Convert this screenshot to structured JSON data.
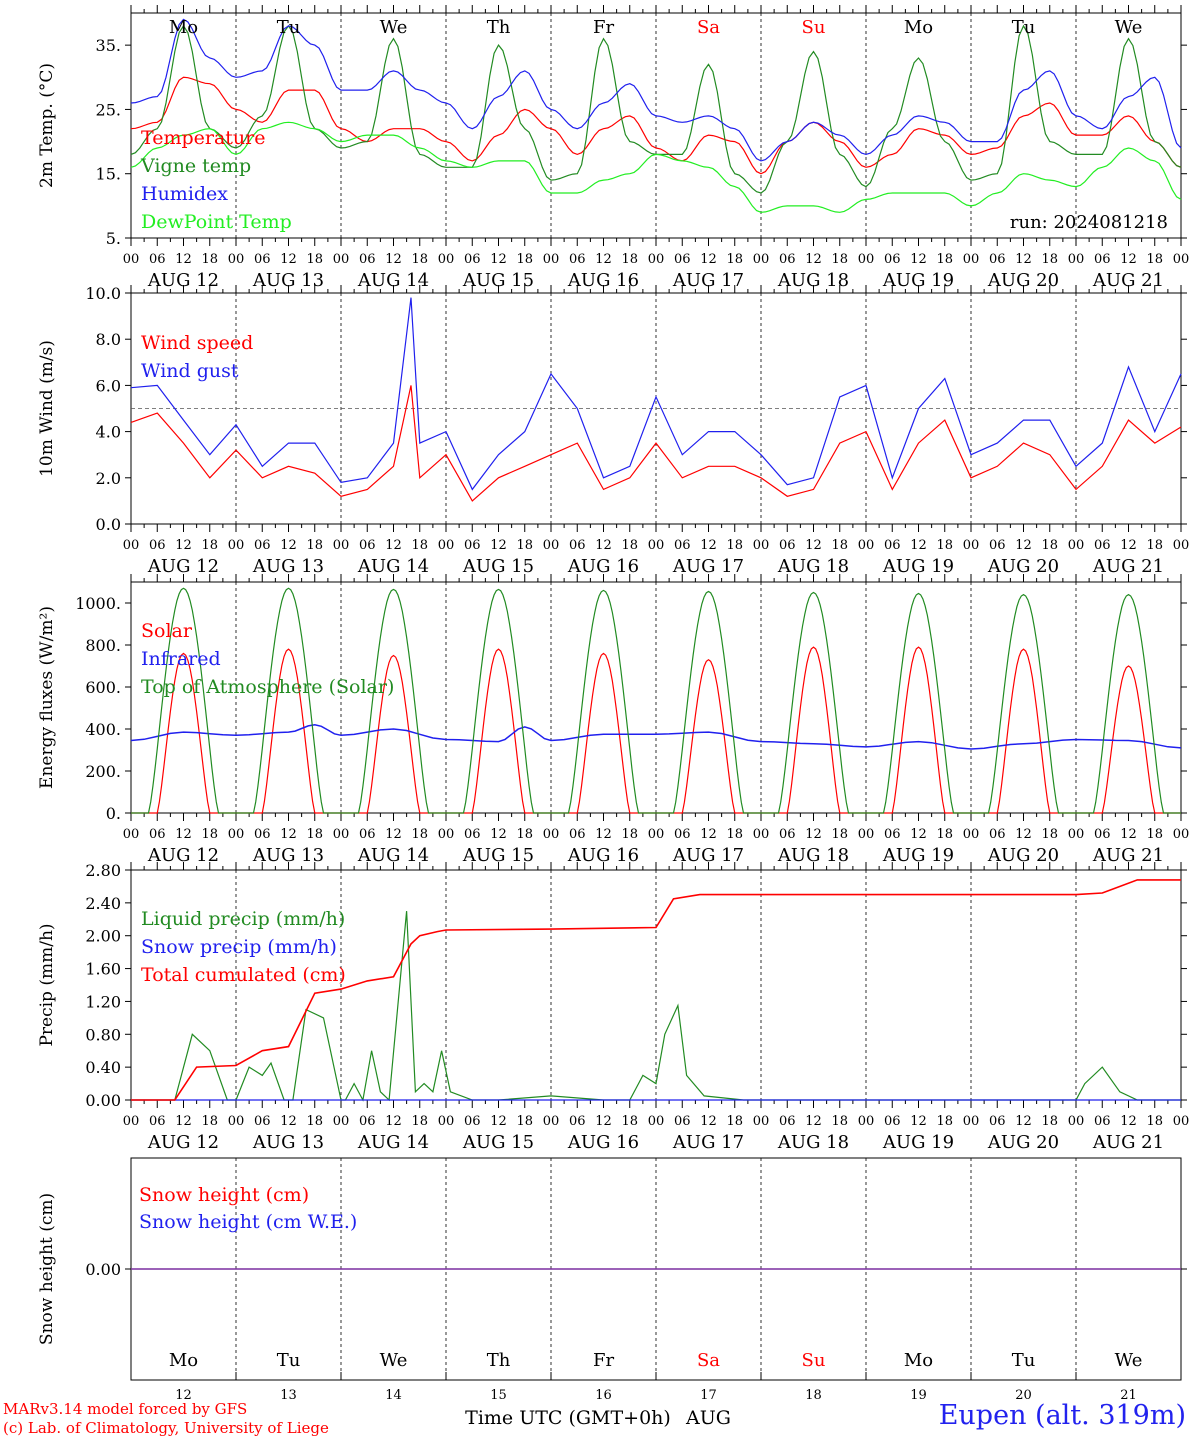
{
  "run_label": "run: 2024081218",
  "x_axis_title": "Time UTC (GMT+0h)",
  "x_axis_month": "AUG",
  "credits": [
    "MARv3.14 model forced by GFS",
    "(c) Lab. of Climatology, University of Liege"
  ],
  "station": "Eupen (alt. 319m)",
  "hour_ticks": [
    "00",
    "06",
    "12",
    "18"
  ],
  "final_tick": "00",
  "dates": [
    "AUG 12",
    "AUG 13",
    "AUG 14",
    "AUG 15",
    "AUG 16",
    "AUG 17",
    "AUG 18",
    "AUG 19",
    "AUG 20",
    "AUG 21"
  ],
  "day_numbers": [
    "12",
    "13",
    "14",
    "15",
    "16",
    "17",
    "18",
    "19",
    "20",
    "21"
  ],
  "day_names": [
    "Mo",
    "Tu",
    "We",
    "Th",
    "Fr",
    "Sa",
    "Su",
    "Mo",
    "Tu",
    "We"
  ],
  "weekend_flags": [
    false,
    false,
    false,
    false,
    false,
    true,
    true,
    false,
    false,
    false
  ],
  "colors": {
    "temperature": "#ff0000",
    "vigne": "#228b22",
    "humidex": "#2020ee",
    "dewpoint": "#22ee22",
    "wind_speed": "#ff0000",
    "wind_gust": "#2020ee",
    "solar": "#ff0000",
    "infrared": "#2020ee",
    "toa": "#228b22",
    "liquid": "#228b22",
    "snow_precip": "#2020ee",
    "cumulated": "#ff0000",
    "snow_cm": "#ff0000",
    "snow_we": "#2020ee",
    "snow_line": "#7b2fa0",
    "weekday": "#000000",
    "weekend": "#ff0000"
  },
  "chart_data": [
    {
      "type": "line",
      "ylabel": "2m Temp. (°C)",
      "ylim": [
        5,
        40
      ],
      "yticks": [
        5,
        15,
        25,
        35
      ],
      "ytick_labels": [
        "5.",
        "15.",
        "25.",
        "35."
      ],
      "x_unit": "hours since AUG 12 00 UTC",
      "x": [
        0,
        6,
        12,
        18,
        24,
        30,
        36,
        42,
        48,
        54,
        60,
        66,
        72,
        78,
        84,
        90,
        96,
        102,
        108,
        114,
        120,
        126,
        132,
        138,
        144,
        150,
        156,
        162,
        168,
        174,
        180,
        186,
        192,
        198,
        204,
        210,
        216,
        222,
        228,
        234,
        240
      ],
      "series": [
        {
          "name": "Temperature",
          "color_key": "temperature",
          "values": [
            22,
            23,
            30,
            29,
            25,
            23,
            28,
            28,
            22,
            20,
            22,
            22,
            20,
            17,
            21,
            25,
            22,
            18,
            22,
            24,
            19,
            17,
            21,
            20,
            15,
            20,
            23,
            20,
            16,
            18,
            22,
            21,
            18,
            19,
            24,
            26,
            21,
            21,
            24,
            20,
            16
          ]
        },
        {
          "name": "Vigne temp",
          "color_key": "vigne",
          "values": [
            18,
            22,
            38,
            22,
            19,
            24,
            38,
            22,
            19,
            20,
            36,
            18,
            16,
            16,
            35,
            22,
            14,
            15,
            36,
            20,
            18,
            18,
            32,
            15,
            12,
            20,
            34,
            18,
            13,
            22,
            33,
            20,
            14,
            15,
            38,
            20,
            18,
            18,
            36,
            20,
            16
          ]
        },
        {
          "name": "Humidex",
          "color_key": "humidex",
          "values": [
            26,
            27,
            39,
            33,
            30,
            31,
            38,
            35,
            28,
            28,
            31,
            28,
            26,
            22,
            27,
            31,
            25,
            22,
            26,
            29,
            24,
            23,
            24,
            22,
            17,
            20,
            23,
            21,
            18,
            21,
            24,
            23,
            20,
            20,
            28,
            31,
            24,
            22,
            27,
            30,
            19
          ]
        },
        {
          "name": "DewPoint Temp",
          "color_key": "dewpoint",
          "values": [
            16,
            19,
            21,
            22,
            18,
            22,
            23,
            22,
            20,
            21,
            21,
            19,
            17,
            16,
            17,
            17,
            12,
            12,
            14,
            15,
            18,
            17,
            16,
            13,
            9,
            10,
            10,
            9,
            11,
            12,
            12,
            12,
            10,
            12,
            15,
            14,
            13,
            16,
            19,
            17,
            11
          ]
        }
      ]
    },
    {
      "type": "line",
      "ylabel": "10m Wind (m/s)",
      "ylim": [
        0,
        10
      ],
      "yticks": [
        0,
        2,
        4,
        6,
        8,
        10
      ],
      "ytick_labels": [
        "0.0",
        "2.0",
        "4.0",
        "6.0",
        "8.0",
        "10.0"
      ],
      "reference_line": 5,
      "x": [
        0,
        6,
        12,
        18,
        24,
        30,
        36,
        42,
        48,
        54,
        60,
        64,
        66,
        72,
        78,
        84,
        90,
        96,
        102,
        108,
        114,
        120,
        126,
        132,
        138,
        144,
        150,
        156,
        162,
        168,
        174,
        180,
        186,
        192,
        198,
        204,
        210,
        216,
        222,
        228,
        234,
        240
      ],
      "series": [
        {
          "name": "Wind speed",
          "color_key": "wind_speed",
          "values": [
            4.4,
            4.8,
            3.5,
            2.0,
            3.2,
            2.0,
            2.5,
            2.2,
            1.2,
            1.5,
            2.5,
            6.0,
            2.0,
            3.0,
            1.0,
            2.0,
            2.5,
            3.0,
            3.5,
            1.5,
            2.0,
            3.5,
            2.0,
            2.5,
            2.5,
            2.0,
            1.2,
            1.5,
            3.5,
            4.0,
            1.5,
            3.5,
            4.5,
            2.0,
            2.5,
            3.5,
            3.0,
            1.5,
            2.5,
            4.5,
            3.5,
            4.2
          ]
        },
        {
          "name": "Wind gust",
          "color_key": "wind_gust",
          "values": [
            5.9,
            6.0,
            4.5,
            3.0,
            4.3,
            2.5,
            3.5,
            3.5,
            1.8,
            2.0,
            3.5,
            9.8,
            3.5,
            4.0,
            1.5,
            3.0,
            4.0,
            6.5,
            5.0,
            2.0,
            2.5,
            5.5,
            3.0,
            4.0,
            4.0,
            3.0,
            1.7,
            2.0,
            5.5,
            6.0,
            2.0,
            5.0,
            6.3,
            3.0,
            3.5,
            4.5,
            4.5,
            2.5,
            3.5,
            6.8,
            4.0,
            6.5
          ]
        }
      ]
    },
    {
      "type": "line",
      "ylabel": "Energy fluxes (W/m²)",
      "ylim": [
        0,
        1100
      ],
      "yticks": [
        0,
        200,
        400,
        600,
        800,
        1000
      ],
      "ytick_labels": [
        "0.",
        "200.",
        "400.",
        "600.",
        "800.",
        "1000."
      ],
      "series": [
        {
          "name": "Solar",
          "color_key": "solar",
          "peaks": [
            760,
            780,
            750,
            780,
            760,
            730,
            790,
            790,
            780,
            700
          ]
        },
        {
          "name": "Infrared",
          "color_key": "infrared",
          "x": [
            0,
            12,
            24,
            36,
            42,
            48,
            60,
            72,
            84,
            90,
            96,
            108,
            120,
            132,
            144,
            156,
            168,
            180,
            192,
            204,
            216,
            228,
            240
          ],
          "values": [
            345,
            385,
            370,
            385,
            420,
            370,
            400,
            350,
            340,
            410,
            345,
            375,
            375,
            385,
            340,
            330,
            315,
            340,
            305,
            330,
            350,
            345,
            310
          ]
        },
        {
          "name": "Top of Atmosphere (Solar)",
          "color_key": "toa",
          "peaks": [
            1070,
            1070,
            1065,
            1065,
            1060,
            1055,
            1050,
            1045,
            1040,
            1040
          ]
        }
      ]
    },
    {
      "type": "line",
      "ylabel": "Precip (mm/h)",
      "ylim": [
        0,
        2.8
      ],
      "yticks": [
        0,
        0.4,
        0.8,
        1.2,
        1.6,
        2.0,
        2.4,
        2.8
      ],
      "ytick_labels": [
        "0.00",
        "0.40",
        "0.80",
        "1.20",
        "1.60",
        "2.00",
        "2.40",
        "2.80"
      ],
      "series": [
        {
          "name": "Liquid precip (mm/h)",
          "color_key": "liquid",
          "x": [
            0,
            10,
            14,
            18,
            22,
            24,
            27,
            30,
            32,
            35,
            37,
            40,
            44,
            48,
            49,
            51,
            53,
            55,
            57,
            59,
            63,
            65,
            67,
            69,
            71,
            73,
            78,
            84,
            96,
            108,
            114,
            117,
            120,
            122,
            125,
            127,
            131,
            140,
            216,
            218,
            222,
            226,
            230,
            240
          ],
          "values": [
            0,
            0,
            0.8,
            0.6,
            0,
            0,
            0.4,
            0.3,
            0.45,
            0,
            0,
            1.1,
            1.0,
            0,
            0,
            0.2,
            0,
            0.6,
            0.1,
            0,
            2.3,
            0.1,
            0.2,
            0.1,
            0.6,
            0.1,
            0,
            0,
            0.05,
            0,
            0,
            0.3,
            0.2,
            0.8,
            1.15,
            0.3,
            0.05,
            0,
            0,
            0.2,
            0.4,
            0.1,
            0,
            0
          ]
        },
        {
          "name": "Snow precip (mm/h)",
          "color_key": "snow_precip",
          "x": [
            0,
            240
          ],
          "values": [
            0,
            0
          ]
        },
        {
          "name": "Total cumulated (cm)",
          "color_key": "cumulated",
          "x": [
            0,
            10,
            15,
            24,
            30,
            36,
            42,
            48,
            54,
            60,
            64,
            66,
            70,
            72,
            96,
            120,
            124,
            130,
            216,
            222,
            230,
            240
          ],
          "values": [
            0,
            0,
            0.4,
            0.42,
            0.6,
            0.65,
            1.3,
            1.35,
            1.45,
            1.5,
            1.9,
            2.0,
            2.05,
            2.07,
            2.08,
            2.1,
            2.45,
            2.5,
            2.5,
            2.52,
            2.68,
            2.68
          ]
        }
      ]
    },
    {
      "type": "line",
      "ylabel": "Snow height (cm)",
      "ylim": [
        -1,
        1
      ],
      "yticks": [
        0
      ],
      "ytick_labels": [
        "0.00"
      ],
      "series": [
        {
          "name": "Snow height (cm)",
          "color_key": "snow_cm",
          "x": [
            0,
            240
          ],
          "values": [
            0,
            0
          ]
        },
        {
          "name": "Snow height (cm W.E.)",
          "color_key": "snow_we",
          "x": [
            0,
            240
          ],
          "values": [
            0,
            0
          ]
        }
      ]
    }
  ]
}
